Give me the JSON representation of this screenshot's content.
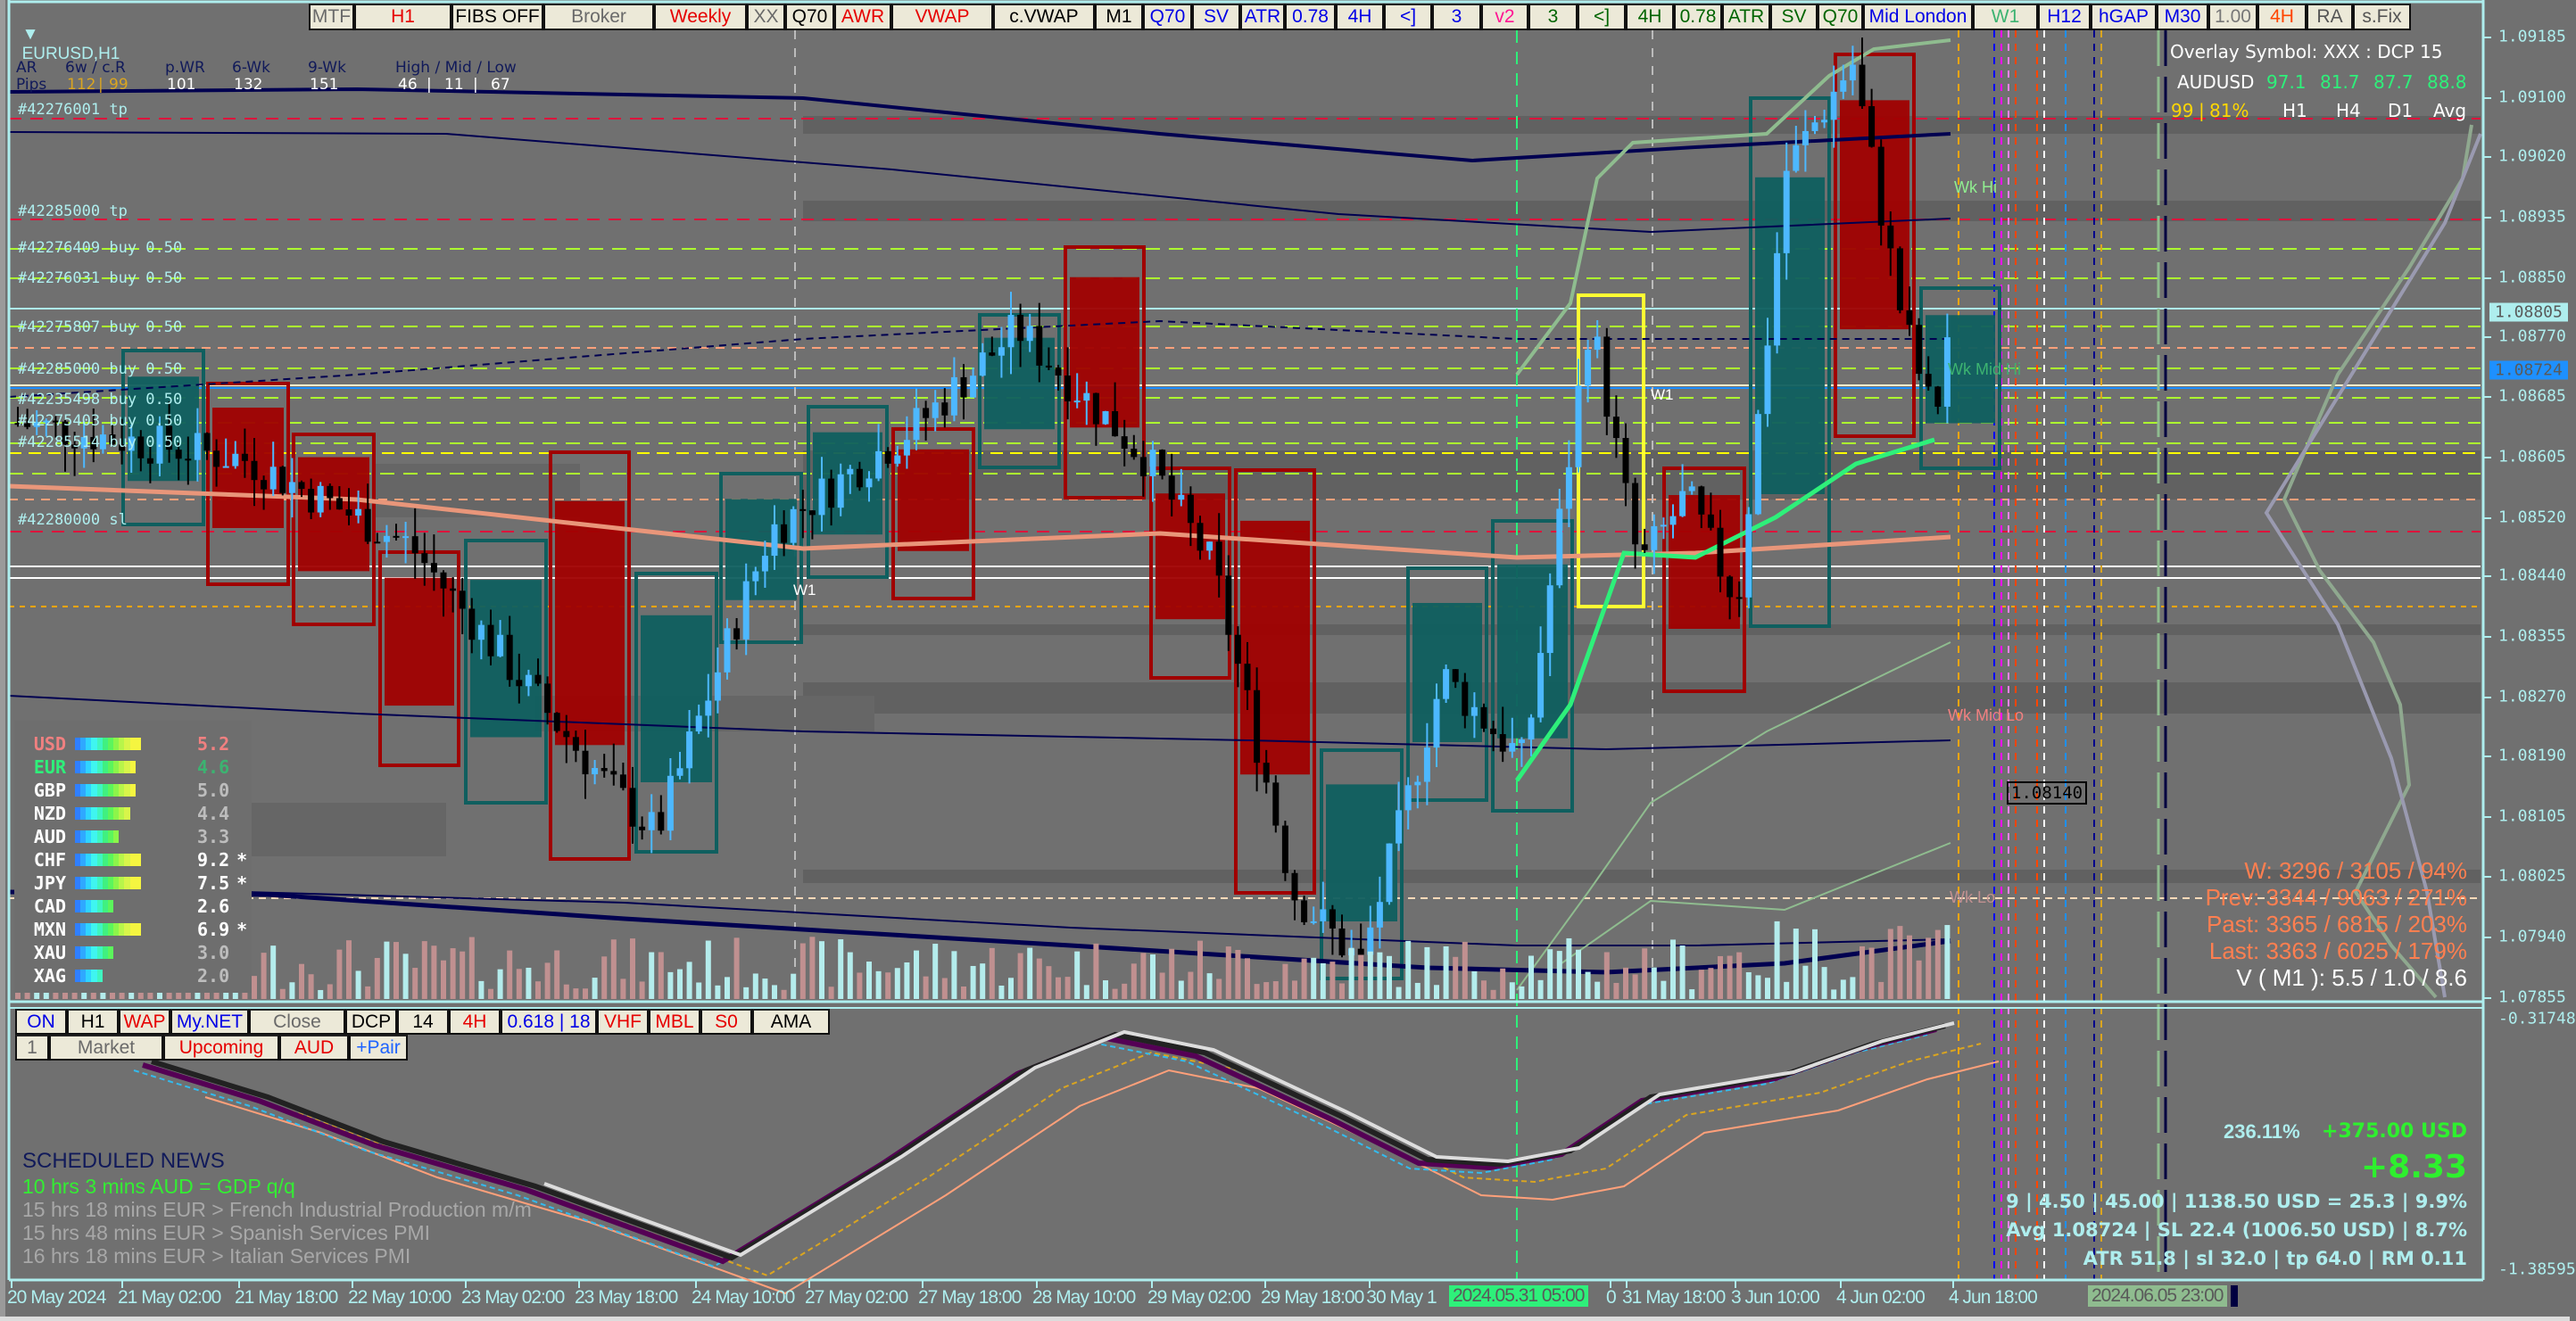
{
  "window": {
    "symbol_title": "EURUSD,H1"
  },
  "top_toolbar": [
    {
      "label": "MTF",
      "color": "#6a6a6a"
    },
    {
      "label": "H1",
      "color": "#e60000"
    },
    {
      "label": "FIBS OFF",
      "color": "#000000"
    },
    {
      "label": "Broker",
      "color": "#6a6a6a"
    },
    {
      "label": "Weekly",
      "color": "#e60000"
    },
    {
      "label": "XX",
      "color": "#6a6a6a"
    },
    {
      "label": "Q70",
      "color": "#000000"
    },
    {
      "label": "AWR",
      "color": "#e60000"
    },
    {
      "label": "VWAP",
      "color": "#e60000"
    },
    {
      "label": "c.VWAP",
      "color": "#000000"
    },
    {
      "label": "M1",
      "color": "#000000"
    },
    {
      "label": "Q70",
      "color": "#0000e6"
    },
    {
      "label": "SV",
      "color": "#0000e6"
    },
    {
      "label": "ATR",
      "color": "#0000e6"
    },
    {
      "label": "0.78",
      "color": "#0000e6"
    },
    {
      "label": "4H",
      "color": "#0000e6"
    },
    {
      "label": "<]",
      "color": "#0000e6"
    },
    {
      "label": "3",
      "color": "#0000e6"
    },
    {
      "label": "v2",
      "color": "#ff1493"
    },
    {
      "label": "3",
      "color": "#006400"
    },
    {
      "label": "<]",
      "color": "#006400"
    },
    {
      "label": "4H",
      "color": "#006400"
    },
    {
      "label": "0.78",
      "color": "#006400"
    },
    {
      "label": "ATR",
      "color": "#006400"
    },
    {
      "label": "SV",
      "color": "#006400"
    },
    {
      "label": "Q70",
      "color": "#006400"
    },
    {
      "label": "Mid London",
      "color": "#0000e6"
    },
    {
      "label": "W1",
      "color": "#3cb371"
    },
    {
      "label": "H12",
      "color": "#0000e6"
    },
    {
      "label": "hGAP",
      "color": "#0000e6"
    },
    {
      "label": "M30",
      "color": "#0000e6"
    },
    {
      "label": "1.00",
      "color": "#777777"
    },
    {
      "label": "4H",
      "color": "#ff4500"
    },
    {
      "label": "RA",
      "color": "#555555"
    },
    {
      "label": "s.Fix",
      "color": "#555555"
    }
  ],
  "ar_stats": {
    "headers": [
      "AR",
      "6w / c.R",
      "p.WR",
      "6-Wk",
      "9-Wk",
      "High / Mid / Low"
    ],
    "row_label": "Pips",
    "six_week": "112",
    "current_range": "99",
    "prev_week_range": "101",
    "six_wk": "132",
    "nine_wk": "151",
    "high": "46",
    "mid": "11",
    "low": "67"
  },
  "orders": [
    "#42276001 tp",
    "#42285000 tp",
    "#42276409 buy 0.50",
    "#42276031 buy 0.50",
    "#42275807 buy 0.50",
    "#42285000 buy 0.50",
    "#42235498 buy 0.50",
    "#42275403 buy 0.50",
    "#42285514 buy 0.50",
    "#42280000 sl"
  ],
  "overlay": {
    "title": "Overlay Symbol: XXX : DCP 15",
    "symbol": "AUDUSD",
    "values": [
      "97.1",
      "81.7",
      "87.7",
      "88.8"
    ],
    "score": "99",
    "percent": "81%",
    "timeframes": [
      "H1",
      "H4",
      "D1",
      "Avg"
    ]
  },
  "chart_labels": {
    "wk_hi": "Wk Hi",
    "wk_mid_hi": "Wk Mid Hi",
    "wk_mid_lo": "Wk Mid Lo",
    "wk_lo": "Wk Lo",
    "w1_a": "W1",
    "w1_b": "W1",
    "price_marker": "1.08140"
  },
  "price_axis": {
    "ticks": [
      "1.09185",
      "1.09100",
      "1.09020",
      "1.08935",
      "1.08850",
      "1.08770",
      "1.08685",
      "1.08605",
      "1.08520",
      "1.08440",
      "1.08355",
      "1.08270",
      "1.08190",
      "1.08105",
      "1.08025",
      "1.07940",
      "1.07855"
    ],
    "bid": "1.08805",
    "avg_price": "1.08724",
    "indicator_top": "-0.31748",
    "indicator_bottom": "-1.38595"
  },
  "currency_strength": [
    {
      "code": "USD",
      "value": "5.2",
      "segments": 12,
      "code_color": "#f08080",
      "value_color": "#f08080",
      "mark": ""
    },
    {
      "code": "EUR",
      "value": "4.6",
      "segments": 11,
      "code_color": "#2ef07a",
      "value_color": "#3cb371",
      "mark": ""
    },
    {
      "code": "GBP",
      "value": "5.0",
      "segments": 11,
      "code_color": "#ffffff",
      "value_color": "#bdbdbd",
      "mark": ""
    },
    {
      "code": "NZD",
      "value": "4.4",
      "segments": 10,
      "code_color": "#ffffff",
      "value_color": "#bdbdbd",
      "mark": ""
    },
    {
      "code": "AUD",
      "value": "3.3",
      "segments": 8,
      "code_color": "#ffffff",
      "value_color": "#bdbdbd",
      "mark": ""
    },
    {
      "code": "CHF",
      "value": "9.2",
      "segments": 12,
      "code_color": "#ffffff",
      "value_color": "#ffffff",
      "mark": "*"
    },
    {
      "code": "JPY",
      "value": "7.5",
      "segments": 12,
      "code_color": "#ffffff",
      "value_color": "#ffffff",
      "mark": "*"
    },
    {
      "code": "CAD",
      "value": "2.6",
      "segments": 7,
      "code_color": "#ffffff",
      "value_color": "#ffffff",
      "mark": ""
    },
    {
      "code": "MXN",
      "value": "6.9",
      "segments": 12,
      "code_color": "#ffffff",
      "value_color": "#ffffff",
      "mark": "*"
    },
    {
      "code": "XAU",
      "value": "3.0",
      "segments": 7,
      "code_color": "#ffffff",
      "value_color": "#bdbdbd",
      "mark": ""
    },
    {
      "code": "XAG",
      "value": "2.0",
      "segments": 5,
      "code_color": "#ffffff",
      "value_color": "#bdbdbd",
      "mark": ""
    }
  ],
  "bottom_toolbar": {
    "row1": [
      {
        "label": "ON",
        "color": "#0000e6"
      },
      {
        "label": "H1",
        "color": "#000000"
      },
      {
        "label": "WAP",
        "color": "#e60000"
      },
      {
        "label": "My.NET",
        "color": "#0000e6"
      },
      {
        "label": "Close",
        "color": "#6a6a6a"
      },
      {
        "label": "DCP",
        "color": "#000000"
      },
      {
        "label": "14",
        "color": "#000000"
      },
      {
        "label": "4H",
        "color": "#e60000"
      },
      {
        "label": "0.618 | 18",
        "color": "#0000e6"
      },
      {
        "label": "VHF",
        "color": "#e60000"
      },
      {
        "label": "MBL",
        "color": "#e60000"
      },
      {
        "label": "S0",
        "color": "#e60000"
      },
      {
        "label": "AMA",
        "color": "#000000"
      }
    ],
    "row2": [
      {
        "label": "1",
        "color": "#6a6a6a"
      },
      {
        "label": "Market",
        "color": "#6a6a6a"
      },
      {
        "label": "Upcoming",
        "color": "#e60000"
      },
      {
        "label": "AUD",
        "color": "#e60000"
      },
      {
        "label": "+Pair",
        "color": "#1e64ff"
      }
    ]
  },
  "news": {
    "title": "SCHEDULED NEWS",
    "items": [
      {
        "text": "10 hrs 3 mins  AUD  =  GDP q/q",
        "color": "#33ee33"
      },
      {
        "text": "15 hrs 18 mins  EUR  >  French Industrial Production m/m",
        "color": "#a8a8a8"
      },
      {
        "text": "15 hrs 48 mins  EUR  >  Spanish Services PMI",
        "color": "#a8a8a8"
      },
      {
        "text": "16 hrs 18 mins  EUR  >  Italian Services PMI",
        "color": "#a8a8a8"
      }
    ]
  },
  "volume_stats": {
    "w": "W: 3296 / 3105 / 94%",
    "prev": "Prev: 3344 / 9063 / 271%",
    "past": "Past: 3365 / 6815 / 203%",
    "last": "Last: 3363 / 6025 / 179%",
    "v_m1": "V ( M1 ): 5.5 / 1.0 / 8.6"
  },
  "risk_stats": {
    "return_pct": "236.11%",
    "profit": "+375.00 USD",
    "pips": "+8.33",
    "line1": "9  |  4.50  |  45.00  |  1138.50 USD = 25.3  |  9.9%",
    "line2": "Avg 1.08724  |  SL 22.4 (1006.50 USD)  |  8.7%",
    "line3": "ATR 51.8  |  sl 32.0  |  tp 64.0  |  RM 0.11"
  },
  "time_axis": {
    "labels": [
      "20 May 2024",
      "21 May 02:00",
      "21 May 18:00",
      "22 May 10:00",
      "23 May 02:00",
      "23 May 18:00",
      "24 May 10:00",
      "27 May 02:00",
      "27 May 18:00",
      "28 May 10:00",
      "29 May 02:00",
      "29 May 18:00",
      "30 May 1",
      "0",
      "31 May 18:00",
      "3 Jun 10:00",
      "4 Jun 02:00",
      "4 Jun 18:00"
    ],
    "crosshair_time": "2024.05.31 05:00",
    "last_bar_time": "2024.06.05 23:00"
  },
  "colors": {
    "background": "#707070",
    "axis": "#aeeeee",
    "bull_candle": "#4db8ff",
    "bear_candle": "#000000",
    "bear_box": "#a00000",
    "bull_box": "#0f5f5f",
    "button_bg": "#ece9d8"
  }
}
